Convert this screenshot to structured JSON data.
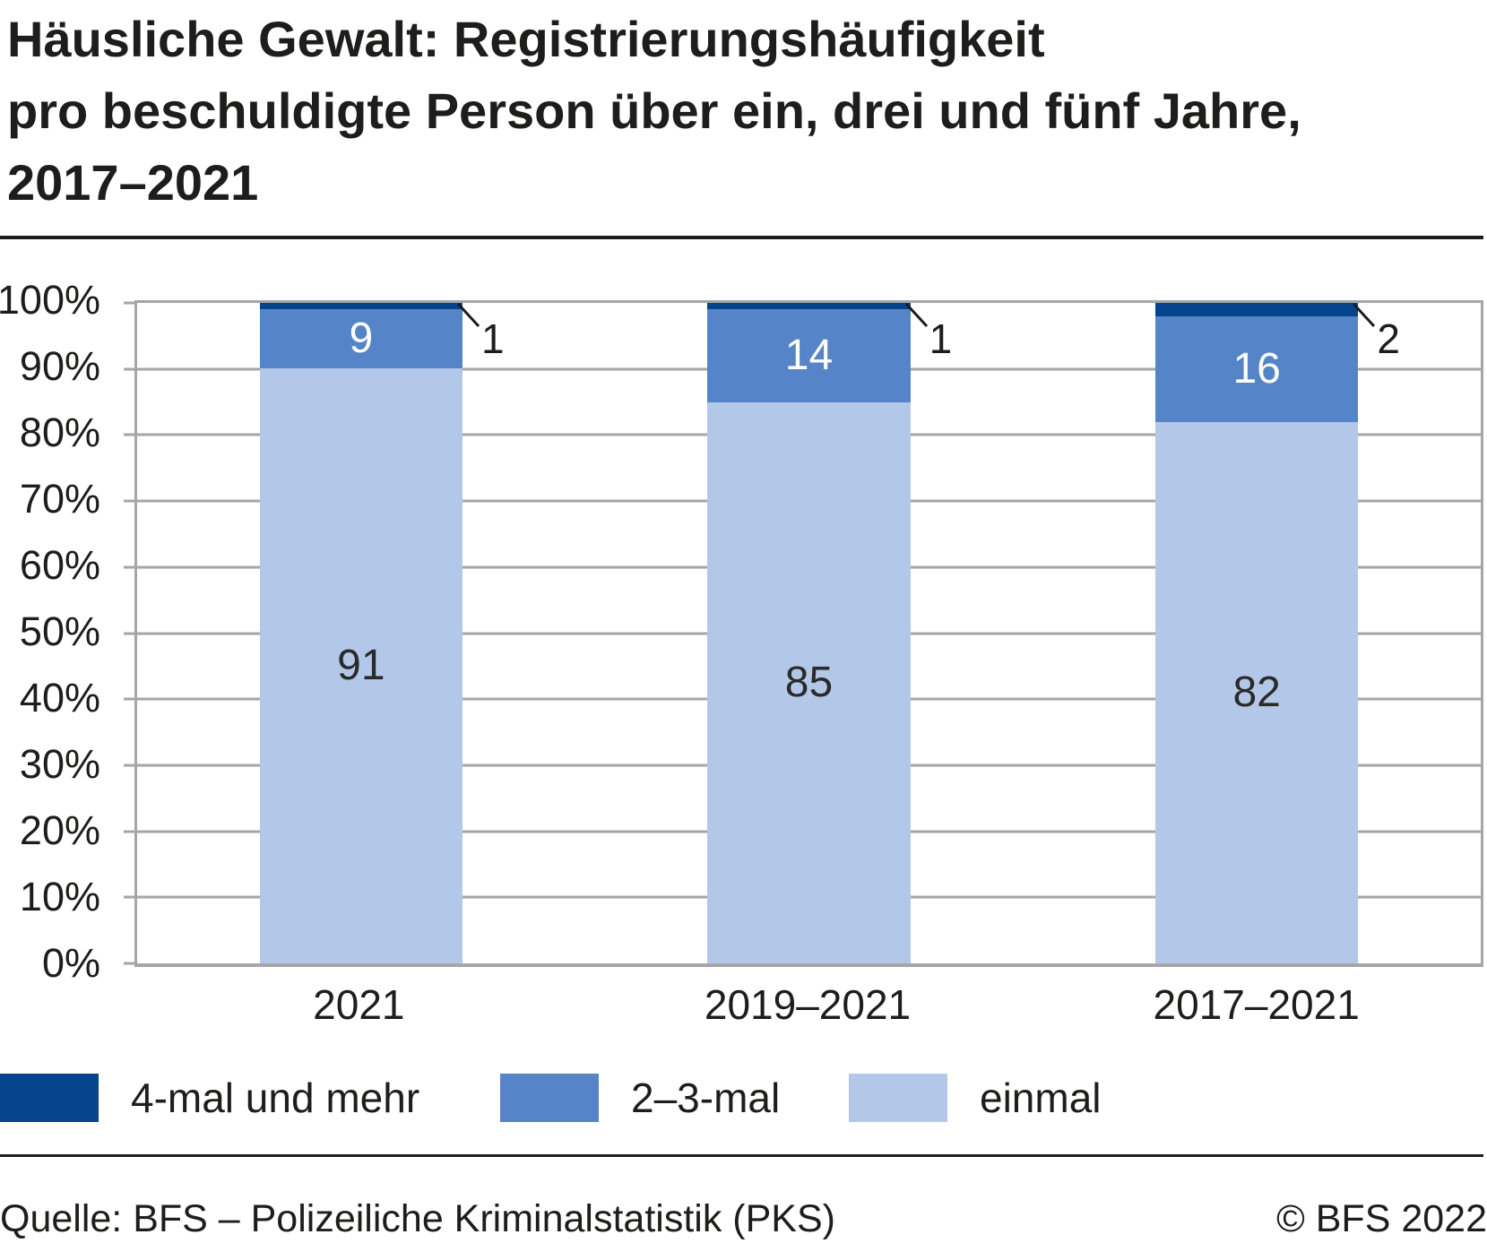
{
  "header": {
    "title": "Häusliche Gewalt: Registrierungshäufigkeit\npro beschuldigte Person über ein, drei und fünf Jahre,\n2017–2021"
  },
  "chart_data": {
    "type": "bar",
    "subtype": "stacked-percent-columns",
    "categories": [
      "2021",
      "2019–2021",
      "2017–2021"
    ],
    "series": [
      {
        "name": "4-mal und mehr",
        "color": "#04448c",
        "values": [
          1,
          1,
          2
        ],
        "label_style": "callout"
      },
      {
        "name": "2–3-mal",
        "color": "#5585c8",
        "values": [
          9,
          14,
          16
        ],
        "label_color": "#ffffff"
      },
      {
        "name": "einmal",
        "color": "#b3c8e9",
        "values": [
          91,
          85,
          82
        ],
        "label_color": "#2a2a29"
      }
    ],
    "yticks": [
      "0%",
      "10%",
      "20%",
      "30%",
      "40%",
      "50%",
      "60%",
      "70%",
      "80%",
      "90%",
      "100%"
    ],
    "ylim": [
      0,
      100
    ],
    "grid": "horizontal",
    "gridline_color": "#a6a6a6",
    "legend_position": "bottom-left",
    "bar_width_pct": 15.1
  },
  "legend": {
    "items": [
      {
        "label": "4-mal und mehr",
        "color": "#04448c"
      },
      {
        "label": "2–3-mal",
        "color": "#5585c8"
      },
      {
        "label": "einmal",
        "color": "#b3c8e9"
      }
    ]
  },
  "footer": {
    "source": "Quelle: BFS – Polizeiliche Kriminalstatistik (PKS)",
    "copyright": "© BFS 2022"
  }
}
